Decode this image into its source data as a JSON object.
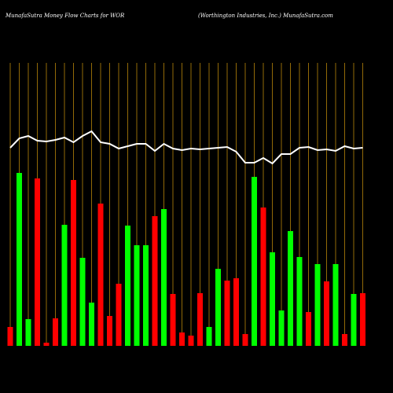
{
  "chart_data": {
    "type": "bar",
    "title": "MunafaSutra  Money Flow  Charts for WOR",
    "subtitle": "(Worthington  Industries,  Inc.) MunafaSutra.com",
    "categories": [
      null,
      null,
      null,
      null,
      null,
      null,
      null,
      null,
      null,
      null,
      null,
      null,
      null,
      null,
      null,
      null,
      null,
      null,
      null,
      null,
      null,
      null,
      null,
      null,
      null,
      null,
      null,
      null,
      null,
      null,
      null,
      null,
      null,
      null,
      null,
      null,
      null,
      null,
      null,
      null
    ],
    "values": [
      24,
      220,
      34,
      213,
      4,
      35,
      154,
      211,
      112,
      55,
      181,
      38,
      79,
      153,
      128,
      128,
      165,
      174,
      66,
      17,
      13,
      67,
      24,
      98,
      83,
      86,
      15,
      215,
      176,
      119,
      45,
      146,
      113,
      43,
      104,
      82,
      104,
      15,
      66,
      67
    ],
    "colors": [
      "#ff0000",
      "#00ff00",
      "#00ff00",
      "#ff0000",
      "#ff0000",
      "#ff0000",
      "#00ff00",
      "#ff0000",
      "#00ff00",
      "#00ff00",
      "#ff0000",
      "#ff0000",
      "#ff0000",
      "#00ff00",
      "#00ff00",
      "#00ff00",
      "#ff0000",
      "#00ff00",
      "#ff0000",
      "#ff0000",
      "#ff0000",
      "#ff0000",
      "#00ff00",
      "#00ff00",
      "#ff0000",
      "#ff0000",
      "#ff0000",
      "#00ff00",
      "#ff0000",
      "#00ff00",
      "#00ff00",
      "#00ff00",
      "#00ff00",
      "#ff0000",
      "#00ff00",
      "#ff0000",
      "#00ff00",
      "#ff0000",
      "#00ff00",
      "#ff0000"
    ],
    "line": {
      "color": "#ffffff",
      "values": [
        252,
        264,
        267,
        261,
        260,
        262,
        265,
        259,
        267,
        273,
        259,
        257,
        251,
        254,
        257,
        257,
        248,
        257,
        251,
        249,
        251,
        250,
        251,
        252,
        253,
        247,
        233,
        233,
        239,
        232,
        244,
        244,
        252,
        253,
        249,
        250,
        248,
        254,
        251,
        252
      ]
    },
    "ylim": [
      0,
      360
    ],
    "grid_color": "#b8860b",
    "background": "#000000"
  }
}
